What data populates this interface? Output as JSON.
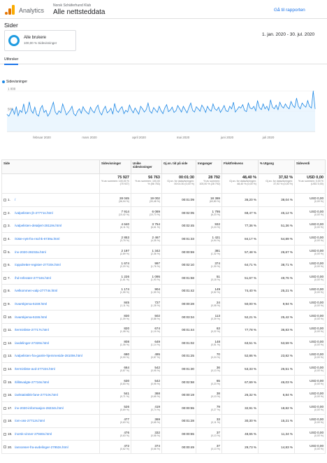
{
  "header": {
    "app": "Analytics",
    "account": "Norsk Schäferhund Klub",
    "property": "Alle nettsteddata",
    "share": "Gå til rapporten"
  },
  "page_title": "Sider",
  "segment": {
    "name": "Alle brukere",
    "sub": "100,00 % Sidevisninger"
  },
  "date_range": "1. jan. 2020 - 30. jul. 2020",
  "tab": "Utforsker",
  "colors": {
    "accent": "#1a73e8",
    "series": "#1e88e5"
  },
  "chart_data": {
    "type": "line",
    "series": [
      {
        "name": "Sidevisninger",
        "values": [
          420,
          380,
          470,
          560,
          430,
          610,
          390,
          520,
          470,
          680,
          440,
          500,
          730,
          520,
          450,
          600,
          420,
          380,
          560,
          640,
          470,
          520,
          380,
          450,
          590,
          720,
          480,
          420,
          510,
          460,
          680,
          550,
          410,
          470,
          530,
          620,
          440,
          390,
          500,
          560,
          450,
          610,
          520,
          470,
          430,
          600,
          510,
          460,
          580,
          650,
          480,
          410,
          540,
          620,
          460,
          500,
          570,
          430,
          690,
          520,
          470,
          560,
          610,
          440,
          520,
          480,
          650,
          540,
          460,
          580,
          500,
          430,
          620,
          560,
          480,
          540,
          700,
          500,
          450,
          590,
          530,
          470,
          620,
          510,
          440,
          580,
          660,
          490,
          530,
          600,
          470,
          510,
          640,
          560,
          480,
          620,
          540,
          460,
          590,
          700,
          520,
          480,
          610,
          560,
          500,
          650,
          580,
          470,
          620,
          540,
          500,
          680,
          560,
          520,
          600,
          470,
          550,
          640,
          510,
          490,
          620,
          560,
          720,
          480,
          540,
          610,
          580,
          660,
          520,
          490,
          700,
          580,
          560,
          620,
          510,
          760,
          590,
          540,
          680,
          560,
          620,
          520,
          780,
          600,
          560,
          650,
          540,
          720,
          620,
          580,
          680,
          600,
          560,
          740,
          640,
          590,
          820,
          620,
          560,
          700,
          640,
          600,
          760,
          620,
          580,
          1000,
          560
        ]
      }
    ],
    "ylim": [
      0,
      1000
    ],
    "yticks": [
      "1 000",
      "500"
    ],
    "xticks": [
      "februar 2020",
      "mars 2020",
      "april 2020",
      "mai 2020",
      "juni 2020",
      "juli 2020"
    ]
  },
  "table": {
    "headers": [
      "Side",
      "Sidevisninger",
      "Unike sidevisninger",
      "Gj.sn. tid på side",
      "Innganger",
      "Fluktfrekvens",
      "% Utgang",
      "Sideverdi"
    ],
    "totals": [
      {
        "v": "75 927",
        "s": "% av summen: 100,00 % (75 927)"
      },
      {
        "v": "56 763",
        "s": "% av summen: 100,00 % (56 763)"
      },
      {
        "v": "00:01:30",
        "s": "Gj.sn. for datavisningen: 00:01:30 (0,00 %)"
      },
      {
        "v": "28 792",
        "s": "% av summen: 100,00 % (28 792)"
      },
      {
        "v": "48,40 %",
        "s": "Gj.sn. for datavisningen: 48,40 % (0,00 %)"
      },
      {
        "v": "37,92 %",
        "s": "Gj.sn. for datavisningen: 37,92 % (0,00 %)"
      },
      {
        "v": "USD 0,00",
        "s": "% av summen: 0,00 % (USD 0,00)"
      }
    ],
    "rows": [
      [
        "1.",
        "/",
        "28 045",
        "(36,94 %)",
        "19 002",
        "(33,48 %)",
        "00:01:09",
        "18 369",
        "(63,80 %)",
        "36,20 %",
        "38,04 %",
        "USD 0,00",
        "(0,00 %)"
      ],
      [
        "2.",
        "/valpelisten-jh-27771s.html",
        "7 914",
        "(10,42 %)",
        "6 089",
        "(10,73 %)",
        "00:02:05",
        "1 795",
        "(6,23 %)",
        "68,47 %",
        "45,12 %",
        "USD 0,00",
        "(0,00 %)"
      ],
      [
        "3.",
        "/valpelisten-detaljert-28119s.html",
        "4 640",
        "(6,11 %)",
        "3 754",
        "(6,61 %)",
        "00:02:45",
        "932",
        "(3,24 %)",
        "77,36 %",
        "51,36 %",
        "USD 0,00",
        "(0,00 %)"
      ],
      [
        "4.",
        "/siste-nytt-fra-nschk-6739a.html",
        "2 853",
        "(3,76 %)",
        "2 467",
        "(4,35 %)",
        "00:01:33",
        "1 421",
        "(4,94 %)",
        "84,17 %",
        "54,89 %",
        "USD 0,00",
        "(0,00 %)"
      ],
      [
        "5.",
        "/nv-2020-28232a.html",
        "2 197",
        "(2,89 %)",
        "1 342",
        "(2,36 %)",
        "00:00:59",
        "381",
        "(1,32 %)",
        "57,48 %",
        "26,67 %",
        "USD 0,00",
        "(0,00 %)"
      ],
      [
        "6.",
        "/oppdretter-register-27720s.html",
        "1 674",
        "(2,20 %)",
        "997",
        "(1,76 %)",
        "00:02:10",
        "374",
        "(1,30 %)",
        "64,71 %",
        "38,71 %",
        "USD 0,00",
        "(0,00 %)"
      ],
      [
        "7.",
        "/hd-referater-27718s.html",
        "1 226",
        "(1,61 %)",
        "1 095",
        "(1,93 %)",
        "00:01:58",
        "51",
        "(0,18 %)",
        "51,67 %",
        "49,76 %",
        "USD 0,00",
        "(0,00 %)"
      ],
      [
        "8.",
        "/velkommen-valp-27774s.html",
        "1 174",
        "(1,55 %)",
        "904",
        "(1,59 %)",
        "00:01:42",
        "149",
        "(0,52 %)",
        "74,40 %",
        "25,21 %",
        "USD 0,00",
        "(0,00 %)"
      ],
      [
        "9.",
        "/svarskjema-5159.html",
        "845",
        "(1,11 %)",
        "727",
        "(1,28 %)",
        "00:00:28",
        "24",
        "(0,08 %)",
        "50,00 %",
        "9,94 %",
        "USD 0,00",
        "(0,00 %)"
      ],
      [
        "10.",
        "/svarskjema-5155.html",
        "830",
        "(1,09 %)",
        "502",
        "(0,88 %)",
        "00:03:34",
        "113",
        "(0,39 %)",
        "52,21 %",
        "25,42 %",
        "USD 0,00",
        "(0,00 %)"
      ],
      [
        "11.",
        "/terminliste-27717s.html",
        "820",
        "(1,08 %)",
        "674",
        "(1,19 %)",
        "00:01:44",
        "63",
        "(0,22 %)",
        "77,78 %",
        "36,83 %",
        "USD 0,00",
        "(0,00 %)"
      ],
      [
        "12.",
        "/avdelinger-27326s.html",
        "808",
        "(1,06 %)",
        "649",
        "(1,14 %)",
        "00:01:02",
        "148",
        "(0,51 %)",
        "63,51 %",
        "53,59 %",
        "USD 0,00",
        "(0,00 %)"
      ],
      [
        "13.",
        "/valpelisten-fra-gamle-hjemmeside-28109s.html",
        "680",
        "(0,90 %)",
        "495",
        "(0,87 %)",
        "00:01:25",
        "70",
        "(0,24 %)",
        "52,86 %",
        "23,82 %",
        "USD 0,00",
        "(0,00 %)"
      ],
      [
        "14.",
        "/terminliste-avd-27722s.html",
        "664",
        "(0,87 %)",
        "542",
        "(0,95 %)",
        "00:01:30",
        "36",
        "(0,13 %)",
        "53,33 %",
        "26,51 %",
        "USD 0,00",
        "(0,00 %)"
      ],
      [
        "15.",
        "/tillitsvalgte-27716s.html",
        "630",
        "(0,83 %)",
        "542",
        "(0,95 %)",
        "00:02:58",
        "65",
        "(0,23 %)",
        "67,69 %",
        "46,03 %",
        "USD 0,00",
        "(0,00 %)"
      ],
      [
        "16.",
        "/avlstatistikk-fane-27710s.html",
        "541",
        "(0,71 %)",
        "368",
        "(0,65 %)",
        "00:00:19",
        "38",
        "(0,13 %)",
        "26,32 %",
        "6,84 %",
        "USD 0,00",
        "(0,00 %)"
      ],
      [
        "17.",
        "/nv-2020-informasjon-28234s.html",
        "526",
        "(0,69 %)",
        "419",
        "(0,74 %)",
        "00:00:55",
        "79",
        "(0,27 %)",
        "32,91 %",
        "18,82 %",
        "USD 0,00",
        "(0,00 %)"
      ],
      [
        "18.",
        "/om-oss-27712s.html",
        "477",
        "(0,63 %)",
        "369",
        "(0,65 %)",
        "00:01:28",
        "33",
        "(0,11 %)",
        "30,30 %",
        "15,21 %",
        "USD 0,00",
        "(0,00 %)"
      ],
      [
        "19.",
        "/norsk-vinner-27946s.html",
        "476",
        "(0,63 %)",
        "332",
        "(0,58 %)",
        "00:00:55",
        "37",
        "(0,13 %)",
        "48,65 %",
        "11,34 %",
        "USD 0,00",
        "(0,00 %)"
      ],
      [
        "20.",
        "/annonser-fra-avdelinger-27953s.html",
        "472",
        "(0,62 %)",
        "374",
        "(0,66 %)",
        "00:00:49",
        "37",
        "(0,13 %)",
        "29,73 %",
        "14,83 %",
        "USD 0,00",
        "(0,00 %)"
      ]
    ]
  }
}
